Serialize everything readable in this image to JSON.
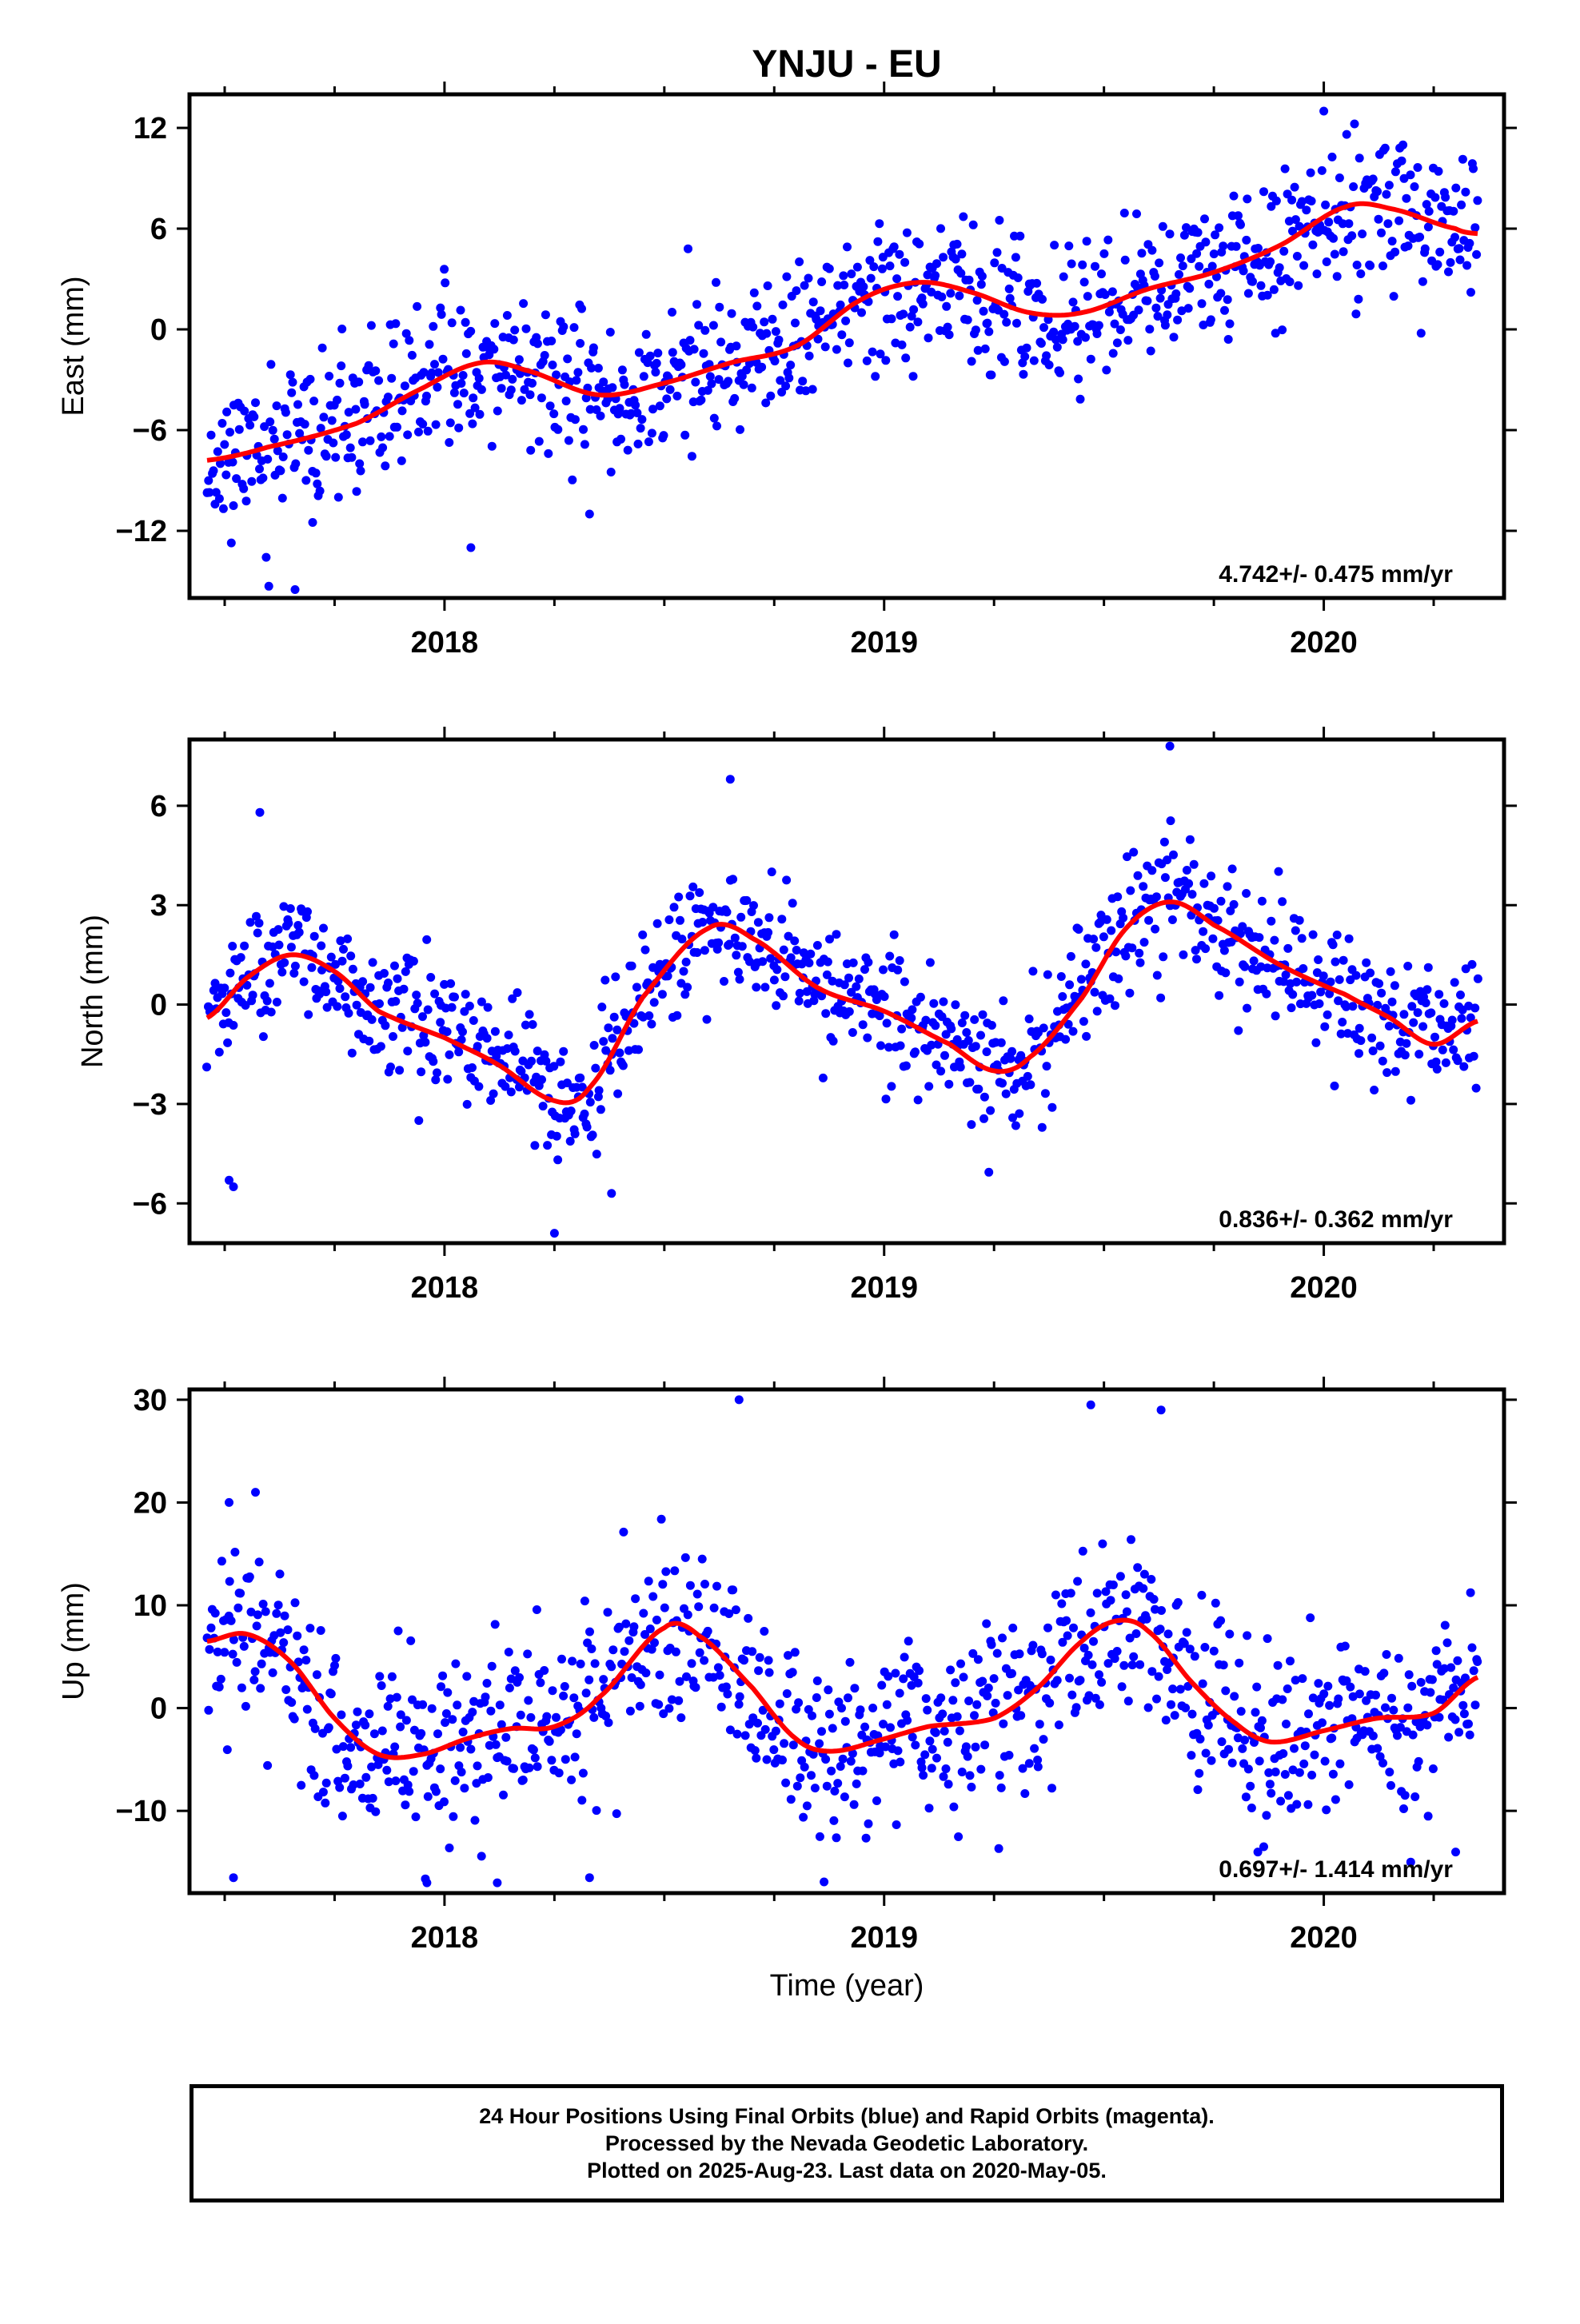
{
  "chart_title": "YNJU - EU",
  "colors": {
    "final_orbit_points": "#0000ff",
    "trend_curve": "#ff0000",
    "frame": "#000000"
  },
  "chart_data": [
    {
      "type": "scatter",
      "panel": "east",
      "title": "YNJU - EU",
      "ylabel": "East (mm)",
      "xlabel": "",
      "xlim": [
        2017.42,
        2020.41
      ],
      "ylim": [
        -16,
        14
      ],
      "x_ticks": [
        2018,
        2019,
        2020
      ],
      "x_tick_labels": [
        "2018",
        "2019",
        "2020"
      ],
      "y_ticks": [
        -12,
        -6,
        0,
        6,
        12
      ],
      "y_tick_labels": [
        "−12",
        "−6",
        "0",
        "6",
        "12"
      ],
      "annotation": "4.742+/- 0.475 mm/yr",
      "grid": false,
      "series": [
        {
          "kind": "points",
          "trend_knots": [
            [
              2017.46,
              -7.8
            ],
            [
              2017.6,
              -7.0
            ],
            [
              2017.8,
              -5.6
            ],
            [
              2017.95,
              -3.5
            ],
            [
              2018.08,
              -2.0
            ],
            [
              2018.18,
              -2.4
            ],
            [
              2018.35,
              -3.9
            ],
            [
              2018.5,
              -3.2
            ],
            [
              2018.65,
              -2.0
            ],
            [
              2018.8,
              -1.0
            ],
            [
              2018.95,
              1.8
            ],
            [
              2019.08,
              2.8
            ],
            [
              2019.2,
              2.2
            ],
            [
              2019.33,
              1.0
            ],
            [
              2019.45,
              1.0
            ],
            [
              2019.6,
              2.4
            ],
            [
              2019.75,
              3.4
            ],
            [
              2019.9,
              5.0
            ],
            [
              2020.05,
              7.3
            ],
            [
              2020.15,
              7.2
            ],
            [
              2020.3,
              6.0
            ],
            [
              2020.35,
              5.7
            ]
          ],
          "scatter_sd": 2.2,
          "n_points": 950,
          "seed": 11,
          "outliers": [
            [
              2017.66,
              -15.5
            ],
            [
              2018.06,
              -13.0
            ],
            [
              2018.33,
              -11.0
            ],
            [
              2017.52,
              -10.5
            ],
            [
              2017.7,
              -11.5
            ],
            [
              2020.0,
              13.0
            ]
          ]
        },
        {
          "kind": "trend-line",
          "trend_knots": [
            [
              2017.46,
              -7.8
            ],
            [
              2017.6,
              -7.0
            ],
            [
              2017.8,
              -5.6
            ],
            [
              2017.95,
              -3.5
            ],
            [
              2018.08,
              -2.0
            ],
            [
              2018.18,
              -2.4
            ],
            [
              2018.35,
              -3.9
            ],
            [
              2018.5,
              -3.2
            ],
            [
              2018.65,
              -2.0
            ],
            [
              2018.8,
              -1.0
            ],
            [
              2018.95,
              1.8
            ],
            [
              2019.08,
              2.8
            ],
            [
              2019.2,
              2.2
            ],
            [
              2019.33,
              1.0
            ],
            [
              2019.45,
              1.0
            ],
            [
              2019.6,
              2.4
            ],
            [
              2019.75,
              3.4
            ],
            [
              2019.9,
              5.0
            ],
            [
              2020.05,
              7.3
            ],
            [
              2020.15,
              7.2
            ],
            [
              2020.3,
              6.0
            ],
            [
              2020.35,
              5.7
            ]
          ]
        }
      ]
    },
    {
      "type": "scatter",
      "panel": "north",
      "title": "",
      "ylabel": "North (mm)",
      "xlabel": "",
      "xlim": [
        2017.42,
        2020.41
      ],
      "ylim": [
        -7.2,
        8.0
      ],
      "x_ticks": [
        2018,
        2019,
        2020
      ],
      "x_tick_labels": [
        "2018",
        "2019",
        "2020"
      ],
      "y_ticks": [
        -6,
        -3,
        0,
        3,
        6
      ],
      "y_tick_labels": [
        "−6",
        "−3",
        "0",
        "3",
        "6"
      ],
      "annotation": "0.836+/- 0.362 mm/yr",
      "grid": false,
      "series": [
        {
          "kind": "points",
          "trend_knots": [
            [
              2017.46,
              -0.4
            ],
            [
              2017.55,
              0.8
            ],
            [
              2017.65,
              1.5
            ],
            [
              2017.75,
              1.0
            ],
            [
              2017.85,
              -0.2
            ],
            [
              2018.0,
              -1.0
            ],
            [
              2018.12,
              -1.8
            ],
            [
              2018.25,
              -2.9
            ],
            [
              2018.33,
              -2.5
            ],
            [
              2018.45,
              0.2
            ],
            [
              2018.6,
              2.3
            ],
            [
              2018.7,
              2.0
            ],
            [
              2018.85,
              0.5
            ],
            [
              2019.0,
              -0.2
            ],
            [
              2019.15,
              -1.2
            ],
            [
              2019.25,
              -2.0
            ],
            [
              2019.33,
              -1.6
            ],
            [
              2019.45,
              0.2
            ],
            [
              2019.55,
              2.3
            ],
            [
              2019.65,
              3.1
            ],
            [
              2019.75,
              2.4
            ],
            [
              2019.9,
              1.2
            ],
            [
              2020.05,
              0.3
            ],
            [
              2020.15,
              -0.4
            ],
            [
              2020.25,
              -1.2
            ],
            [
              2020.35,
              -0.5
            ]
          ],
          "scatter_sd": 0.95,
          "n_points": 950,
          "seed": 23,
          "outliers": [
            [
              2017.58,
              5.8
            ],
            [
              2018.65,
              6.8
            ],
            [
              2019.65,
              7.8
            ],
            [
              2018.25,
              -6.9
            ],
            [
              2017.52,
              -5.5
            ],
            [
              2018.38,
              -5.7
            ],
            [
              2017.51,
              -5.3
            ]
          ]
        },
        {
          "kind": "trend-line",
          "trend_knots": [
            [
              2017.46,
              -0.4
            ],
            [
              2017.55,
              0.8
            ],
            [
              2017.65,
              1.5
            ],
            [
              2017.75,
              1.0
            ],
            [
              2017.85,
              -0.2
            ],
            [
              2018.0,
              -1.0
            ],
            [
              2018.12,
              -1.8
            ],
            [
              2018.25,
              -2.9
            ],
            [
              2018.33,
              -2.5
            ],
            [
              2018.45,
              0.2
            ],
            [
              2018.6,
              2.3
            ],
            [
              2018.7,
              2.0
            ],
            [
              2018.85,
              0.5
            ],
            [
              2019.0,
              -0.2
            ],
            [
              2019.15,
              -1.2
            ],
            [
              2019.25,
              -2.0
            ],
            [
              2019.33,
              -1.6
            ],
            [
              2019.45,
              0.2
            ],
            [
              2019.55,
              2.3
            ],
            [
              2019.65,
              3.1
            ],
            [
              2019.75,
              2.4
            ],
            [
              2019.9,
              1.2
            ],
            [
              2020.05,
              0.3
            ],
            [
              2020.15,
              -0.4
            ],
            [
              2020.25,
              -1.2
            ],
            [
              2020.35,
              -0.5
            ]
          ]
        }
      ]
    },
    {
      "type": "scatter",
      "panel": "up",
      "title": "",
      "ylabel": "Up (mm)",
      "xlabel": "Time (year)",
      "xlim": [
        2017.42,
        2020.41
      ],
      "ylim": [
        -18,
        31
      ],
      "x_ticks": [
        2018,
        2019,
        2020
      ],
      "x_tick_labels": [
        "2018",
        "2019",
        "2020"
      ],
      "y_ticks": [
        -10,
        0,
        10,
        20,
        30
      ],
      "y_tick_labels": [
        "−10",
        "0",
        "10",
        "20",
        "30"
      ],
      "annotation": "0.697+/- 1.414 mm/yr",
      "grid": false,
      "series": [
        {
          "kind": "points",
          "trend_knots": [
            [
              2017.46,
              6.5
            ],
            [
              2017.55,
              7.2
            ],
            [
              2017.65,
              4.5
            ],
            [
              2017.75,
              -1.0
            ],
            [
              2017.85,
              -4.5
            ],
            [
              2017.95,
              -4.5
            ],
            [
              2018.05,
              -3.0
            ],
            [
              2018.15,
              -2.0
            ],
            [
              2018.25,
              -1.8
            ],
            [
              2018.35,
              1.0
            ],
            [
              2018.5,
              7.8
            ],
            [
              2018.58,
              7.0
            ],
            [
              2018.7,
              2.0
            ],
            [
              2018.8,
              -3.0
            ],
            [
              2018.88,
              -4.2
            ],
            [
              2019.0,
              -3.0
            ],
            [
              2019.1,
              -1.8
            ],
            [
              2019.25,
              -1.0
            ],
            [
              2019.35,
              2.0
            ],
            [
              2019.45,
              6.5
            ],
            [
              2019.53,
              8.5
            ],
            [
              2019.6,
              7.5
            ],
            [
              2019.7,
              2.5
            ],
            [
              2019.8,
              -1.5
            ],
            [
              2019.88,
              -3.3
            ],
            [
              2020.0,
              -2.2
            ],
            [
              2020.12,
              -1.0
            ],
            [
              2020.25,
              -0.5
            ],
            [
              2020.35,
              3.0
            ]
          ],
          "scatter_sd": 4.4,
          "n_points": 950,
          "seed": 37,
          "outliers": [
            [
              2018.67,
              30.0
            ],
            [
              2019.47,
              29.5
            ],
            [
              2019.63,
              29.0
            ],
            [
              2017.57,
              21.0
            ],
            [
              2017.51,
              20.0
            ],
            [
              2017.52,
              -16.5
            ],
            [
              2017.96,
              -17.0
            ],
            [
              2018.12,
              -17.0
            ],
            [
              2018.33,
              -16.5
            ],
            [
              2019.85,
              -14.0
            ],
            [
              2020.3,
              -14.0
            ]
          ]
        },
        {
          "kind": "trend-line",
          "trend_knots": [
            [
              2017.46,
              6.5
            ],
            [
              2017.55,
              7.2
            ],
            [
              2017.65,
              4.5
            ],
            [
              2017.75,
              -1.0
            ],
            [
              2017.85,
              -4.5
            ],
            [
              2017.95,
              -4.5
            ],
            [
              2018.05,
              -3.0
            ],
            [
              2018.15,
              -2.0
            ],
            [
              2018.25,
              -1.8
            ],
            [
              2018.35,
              1.0
            ],
            [
              2018.5,
              7.8
            ],
            [
              2018.58,
              7.0
            ],
            [
              2018.7,
              2.0
            ],
            [
              2018.8,
              -3.0
            ],
            [
              2018.88,
              -4.2
            ],
            [
              2019.0,
              -3.0
            ],
            [
              2019.1,
              -1.8
            ],
            [
              2019.25,
              -1.0
            ],
            [
              2019.35,
              2.0
            ],
            [
              2019.45,
              6.5
            ],
            [
              2019.53,
              8.5
            ],
            [
              2019.6,
              7.5
            ],
            [
              2019.7,
              2.5
            ],
            [
              2019.8,
              -1.5
            ],
            [
              2019.88,
              -3.3
            ],
            [
              2020.0,
              -2.2
            ],
            [
              2020.12,
              -1.0
            ],
            [
              2020.25,
              -0.5
            ],
            [
              2020.35,
              3.0
            ]
          ]
        }
      ]
    }
  ],
  "caption": {
    "line1": "24 Hour Positions Using Final Orbits (blue) and Rapid Orbits (magenta).",
    "line2": "Processed by the Nevada Geodetic Laboratory.",
    "line3": "Plotted on 2025-Aug-23. Last data on 2020-May-05."
  }
}
